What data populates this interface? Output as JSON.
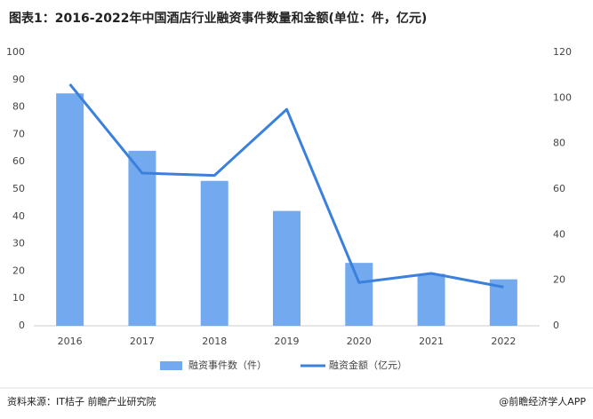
{
  "chart_data": {
    "type": "bar",
    "title": "图表1：2016-2022年中国酒店行业融资事件数量和金额(单位：件，亿元)",
    "categories": [
      "2016",
      "2017",
      "2018",
      "2019",
      "2020",
      "2021",
      "2022"
    ],
    "series": [
      {
        "name": "融资事件数（件）",
        "type": "bar",
        "color": "#73a9ee",
        "values": [
          85,
          64,
          53,
          42,
          23,
          19,
          17
        ]
      },
      {
        "name": "融资金额（亿元）",
        "type": "line",
        "axis": "y2",
        "color": "#3a80dc",
        "values": [
          106,
          67,
          66,
          95,
          19,
          23,
          17
        ]
      }
    ],
    "ylim": [
      0,
      100
    ],
    "yticks": [
      0,
      10,
      20,
      30,
      40,
      50,
      60,
      70,
      80,
      90,
      100
    ],
    "y2lim": [
      0,
      120
    ],
    "y2ticks": [
      0,
      20,
      40,
      60,
      80,
      100,
      120
    ],
    "grid": false,
    "source": "资料来源：IT桔子 前瞻产业研究院",
    "credit": "@前瞻经济学人APP"
  }
}
